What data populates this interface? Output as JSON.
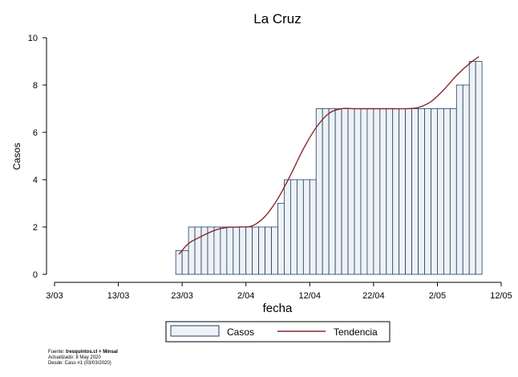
{
  "chart_data": {
    "type": "bar",
    "title": "La Cruz",
    "xlabel": "fecha",
    "ylabel": "Casos",
    "ylim": [
      0,
      10
    ],
    "yticks": [
      0,
      2,
      4,
      6,
      8,
      10
    ],
    "x_tick_labels": [
      "3/03",
      "13/03",
      "23/03",
      "2/04",
      "12/04",
      "22/04",
      "2/05",
      "12/05"
    ],
    "x_range_days_from_3_03": [
      0,
      70
    ],
    "x_days_from_3_03": [
      19,
      20,
      21,
      22,
      23,
      24,
      25,
      26,
      27,
      28,
      29,
      30,
      31,
      32,
      33,
      34,
      35,
      36,
      37,
      38,
      39,
      40,
      41,
      42,
      43,
      44,
      45,
      46,
      47,
      48,
      49,
      50,
      51,
      52,
      53,
      54,
      55,
      56,
      57,
      58,
      59,
      60,
      61,
      62,
      63,
      64,
      65,
      66
    ],
    "values": [
      1,
      1,
      2,
      2,
      2,
      2,
      2,
      2,
      2,
      2,
      2,
      2,
      2,
      2,
      2,
      2,
      3,
      4,
      4,
      4,
      4,
      4,
      7,
      7,
      7,
      7,
      7,
      7,
      7,
      7,
      7,
      7,
      7,
      7,
      7,
      7,
      7,
      7,
      7,
      7,
      7,
      7,
      7,
      7,
      8,
      8,
      9,
      9
    ],
    "series": [
      {
        "name": "Casos",
        "kind": "bar"
      },
      {
        "name": "Tendencia",
        "kind": "line",
        "x": [
          19.5,
          21,
          23,
          25,
          27,
          29,
          31,
          33,
          35,
          37,
          39,
          41,
          43,
          45,
          47,
          49,
          51,
          53,
          55,
          57,
          59,
          61,
          63,
          65,
          66.5
        ],
        "values": [
          0.85,
          1.3,
          1.6,
          1.85,
          1.98,
          2.0,
          2.05,
          2.45,
          3.2,
          4.2,
          5.3,
          6.2,
          6.8,
          7.0,
          7.0,
          7.0,
          7.0,
          7.0,
          7.0,
          7.05,
          7.3,
          7.8,
          8.4,
          8.9,
          9.2
        ]
      }
    ],
    "colors": {
      "bar_fill": "#eef2f5",
      "bar_stroke": "#1f3f66",
      "line": "#8b2830",
      "axis": "#000000"
    },
    "grid": false,
    "legend": {
      "placement": "bottom",
      "entries": [
        "Casos",
        "Tendencia"
      ]
    }
  },
  "source": {
    "line1_prefix": "Fuente: ",
    "line1_bold": "tresquintos.cl",
    "line1_suffix": " + Minsal",
    "line2": "Actualizado: 8 May 2020",
    "line3": "Desde: Caso #1  (03/03/2020)"
  }
}
